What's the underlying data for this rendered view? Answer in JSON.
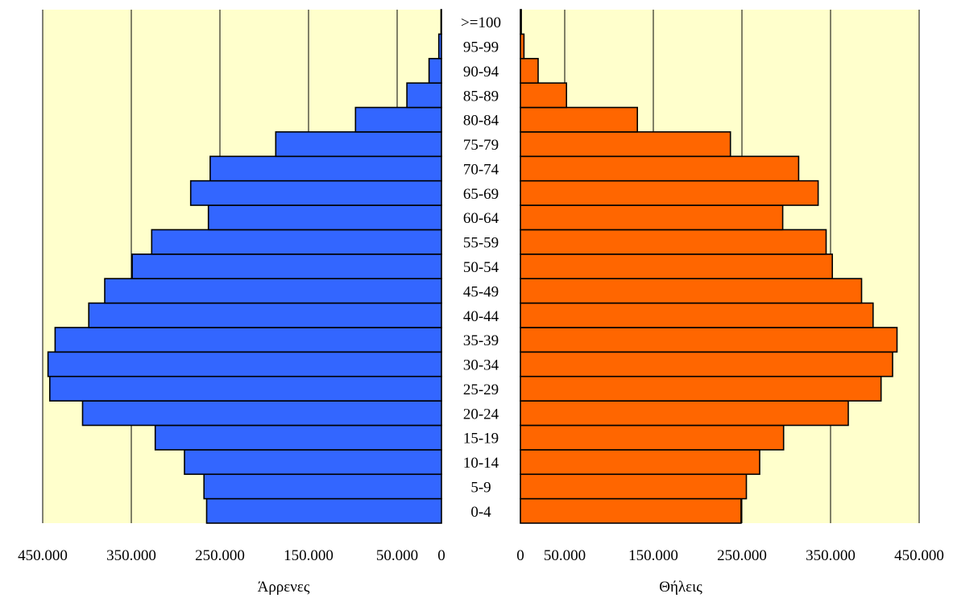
{
  "chart_data": {
    "type": "bar",
    "orientation": "horizontal",
    "layout": "population-pyramid",
    "categories": [
      "0-4",
      "5-9",
      "10-14",
      "15-19",
      "20-24",
      "25-29",
      "30-34",
      "35-39",
      "40-44",
      "45-49",
      "50-54",
      "55-59",
      "60-64",
      "65-69",
      "70-74",
      "75-79",
      "80-84",
      "85-89",
      "90-94",
      "95-99",
      ">=100"
    ],
    "series": [
      {
        "name": "Άρρενες",
        "color": "#3366ff",
        "side": "left",
        "values": [
          265000,
          268000,
          290000,
          323000,
          405000,
          442000,
          444000,
          436000,
          398000,
          380000,
          349000,
          327000,
          263000,
          283000,
          261000,
          187000,
          97000,
          39000,
          14000,
          3000,
          500
        ]
      },
      {
        "name": "Θήλεις",
        "color": "#ff6600",
        "side": "right",
        "values": [
          249000,
          255000,
          270000,
          297000,
          370000,
          407000,
          420000,
          425000,
          398000,
          385000,
          352000,
          345000,
          296000,
          336000,
          314000,
          237000,
          132000,
          52000,
          20000,
          4000,
          1000
        ]
      }
    ],
    "xlim": [
      0,
      450000
    ],
    "left_ticks": [
      "450.000",
      "350.000",
      "250.000",
      "150.000",
      "50.000",
      "0"
    ],
    "right_ticks": [
      "0",
      "50.000",
      "150.000",
      "250.000",
      "350.000",
      "450.000"
    ],
    "left_xlabel": "Άρρενες",
    "right_xlabel": "Θήλεις",
    "grid": true,
    "background": "#ffffcc",
    "title": ""
  }
}
